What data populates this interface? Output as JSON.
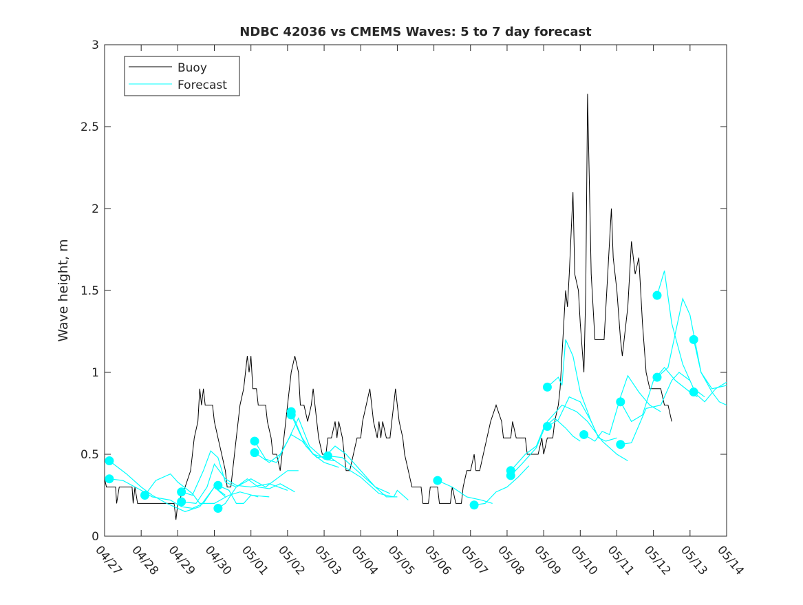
{
  "chart_data": {
    "type": "line",
    "title": "NDBC 42036 vs CMEMS Waves: 5 to 7 day forecast",
    "xlabel": "",
    "ylabel": "Wave height, m",
    "xlim": [
      0,
      17
    ],
    "ylim": [
      0,
      3
    ],
    "x_unit": "days since 04/27",
    "xticks": [
      "04/27",
      "04/28",
      "04/29",
      "04/30",
      "05/01",
      "05/02",
      "05/03",
      "05/04",
      "05/05",
      "05/06",
      "05/07",
      "05/08",
      "05/09",
      "05/10",
      "05/11",
      "05/12",
      "05/13",
      "05/14"
    ],
    "yticks": [
      0,
      0.5,
      1,
      1.5,
      2,
      2.5,
      3
    ],
    "legend": {
      "placement": "top-left",
      "entries": [
        "Buoy",
        "Forecast"
      ]
    },
    "colors": {
      "buoy": "#000000",
      "forecast": "#00ffff"
    },
    "buoy": [
      [
        0,
        0.35
      ],
      [
        0.05,
        0.3
      ],
      [
        0.3,
        0.3
      ],
      [
        0.33,
        0.2
      ],
      [
        0.4,
        0.3
      ],
      [
        0.75,
        0.3
      ],
      [
        0.78,
        0.2
      ],
      [
        0.83,
        0.3
      ],
      [
        0.9,
        0.2
      ],
      [
        1.5,
        0.2
      ],
      [
        1.9,
        0.2
      ],
      [
        1.95,
        0.1
      ],
      [
        2.0,
        0.2
      ],
      [
        2.2,
        0.3
      ],
      [
        2.35,
        0.4
      ],
      [
        2.45,
        0.6
      ],
      [
        2.55,
        0.7
      ],
      [
        2.6,
        0.9
      ],
      [
        2.65,
        0.8
      ],
      [
        2.7,
        0.9
      ],
      [
        2.75,
        0.8
      ],
      [
        2.95,
        0.8
      ],
      [
        3.0,
        0.7
      ],
      [
        3.1,
        0.6
      ],
      [
        3.2,
        0.5
      ],
      [
        3.3,
        0.4
      ],
      [
        3.35,
        0.3
      ],
      [
        3.45,
        0.3
      ],
      [
        3.5,
        0.4
      ],
      [
        3.6,
        0.6
      ],
      [
        3.7,
        0.8
      ],
      [
        3.8,
        0.9
      ],
      [
        3.9,
        1.1
      ],
      [
        3.95,
        1.0
      ],
      [
        4.0,
        1.1
      ],
      [
        4.05,
        0.9
      ],
      [
        4.15,
        0.9
      ],
      [
        4.2,
        0.8
      ],
      [
        4.4,
        0.8
      ],
      [
        4.45,
        0.7
      ],
      [
        4.55,
        0.6
      ],
      [
        4.6,
        0.5
      ],
      [
        4.7,
        0.5
      ],
      [
        4.8,
        0.4
      ],
      [
        4.9,
        0.6
      ],
      [
        5.0,
        0.8
      ],
      [
        5.1,
        1.0
      ],
      [
        5.2,
        1.1
      ],
      [
        5.3,
        1.0
      ],
      [
        5.35,
        0.8
      ],
      [
        5.45,
        0.8
      ],
      [
        5.55,
        0.7
      ],
      [
        5.65,
        0.8
      ],
      [
        5.7,
        0.9
      ],
      [
        5.8,
        0.7
      ],
      [
        5.85,
        0.6
      ],
      [
        5.95,
        0.5
      ],
      [
        6.05,
        0.5
      ],
      [
        6.1,
        0.6
      ],
      [
        6.2,
        0.6
      ],
      [
        6.3,
        0.7
      ],
      [
        6.35,
        0.6
      ],
      [
        6.4,
        0.7
      ],
      [
        6.5,
        0.6
      ],
      [
        6.55,
        0.5
      ],
      [
        6.6,
        0.4
      ],
      [
        6.7,
        0.4
      ],
      [
        6.8,
        0.5
      ],
      [
        6.9,
        0.6
      ],
      [
        7.0,
        0.6
      ],
      [
        7.05,
        0.7
      ],
      [
        7.15,
        0.8
      ],
      [
        7.25,
        0.9
      ],
      [
        7.3,
        0.8
      ],
      [
        7.35,
        0.7
      ],
      [
        7.45,
        0.6
      ],
      [
        7.5,
        0.7
      ],
      [
        7.55,
        0.6
      ],
      [
        7.6,
        0.7
      ],
      [
        7.7,
        0.6
      ],
      [
        7.8,
        0.6
      ],
      [
        7.85,
        0.7
      ],
      [
        7.9,
        0.8
      ],
      [
        7.95,
        0.9
      ],
      [
        8.0,
        0.8
      ],
      [
        8.05,
        0.7
      ],
      [
        8.15,
        0.6
      ],
      [
        8.2,
        0.5
      ],
      [
        8.3,
        0.4
      ],
      [
        8.4,
        0.3
      ],
      [
        8.5,
        0.3
      ],
      [
        8.65,
        0.3
      ],
      [
        8.7,
        0.2
      ],
      [
        8.85,
        0.2
      ],
      [
        8.9,
        0.3
      ],
      [
        9.1,
        0.3
      ],
      [
        9.15,
        0.2
      ],
      [
        9.45,
        0.2
      ],
      [
        9.5,
        0.3
      ],
      [
        9.6,
        0.2
      ],
      [
        9.75,
        0.2
      ],
      [
        9.8,
        0.3
      ],
      [
        9.9,
        0.4
      ],
      [
        10.0,
        0.4
      ],
      [
        10.1,
        0.5
      ],
      [
        10.15,
        0.4
      ],
      [
        10.25,
        0.4
      ],
      [
        10.35,
        0.5
      ],
      [
        10.45,
        0.6
      ],
      [
        10.55,
        0.7
      ],
      [
        10.7,
        0.8
      ],
      [
        10.85,
        0.7
      ],
      [
        10.9,
        0.6
      ],
      [
        11.1,
        0.6
      ],
      [
        11.15,
        0.7
      ],
      [
        11.25,
        0.6
      ],
      [
        11.5,
        0.6
      ],
      [
        11.55,
        0.5
      ],
      [
        11.85,
        0.5
      ],
      [
        11.95,
        0.6
      ],
      [
        12.0,
        0.5
      ],
      [
        12.1,
        0.6
      ],
      [
        12.25,
        0.6
      ],
      [
        12.3,
        0.7
      ],
      [
        12.4,
        0.8
      ],
      [
        12.45,
        0.9
      ],
      [
        12.6,
        1.5
      ],
      [
        12.65,
        1.4
      ],
      [
        12.7,
        1.6
      ],
      [
        12.8,
        2.1
      ],
      [
        12.85,
        1.6
      ],
      [
        12.95,
        1.5
      ],
      [
        13.0,
        1.3
      ],
      [
        13.1,
        1.0
      ],
      [
        13.15,
        1.5
      ],
      [
        13.2,
        2.7
      ],
      [
        13.3,
        1.6
      ],
      [
        13.4,
        1.2
      ],
      [
        13.65,
        1.2
      ],
      [
        13.75,
        1.6
      ],
      [
        13.85,
        2.0
      ],
      [
        13.9,
        1.7
      ],
      [
        14.0,
        1.5
      ],
      [
        14.1,
        1.2
      ],
      [
        14.15,
        1.1
      ],
      [
        14.3,
        1.4
      ],
      [
        14.4,
        1.8
      ],
      [
        14.5,
        1.6
      ],
      [
        14.6,
        1.7
      ],
      [
        14.7,
        1.3
      ],
      [
        14.8,
        1.0
      ],
      [
        14.9,
        0.9
      ],
      [
        15.2,
        0.9
      ],
      [
        15.3,
        0.8
      ],
      [
        15.4,
        0.8
      ],
      [
        15.5,
        0.7
      ]
    ],
    "forecast": [
      [
        [
          0.13,
          0.46
        ],
        [
          0.6,
          0.38
        ],
        [
          1.0,
          0.3
        ],
        [
          1.3,
          0.25
        ],
        [
          1.7,
          0.2
        ],
        [
          2.2,
          0.15
        ],
        [
          2.6,
          0.18
        ],
        [
          3.0,
          0.3
        ],
        [
          3.3,
          0.24
        ]
      ],
      [
        [
          0.13,
          0.35
        ],
        [
          0.5,
          0.34
        ],
        [
          1.0,
          0.28
        ],
        [
          1.3,
          0.24
        ],
        [
          1.8,
          0.22
        ],
        [
          2.1,
          0.18
        ],
        [
          2.4,
          0.17
        ],
        [
          2.7,
          0.2
        ],
        [
          3.0,
          0.3
        ],
        [
          3.3,
          0.25
        ]
      ],
      [
        [
          1.1,
          0.25
        ],
        [
          1.4,
          0.34
        ],
        [
          1.8,
          0.38
        ],
        [
          2.0,
          0.33
        ],
        [
          2.4,
          0.26
        ],
        [
          2.6,
          0.2
        ],
        [
          3.0,
          0.2
        ],
        [
          3.4,
          0.25
        ],
        [
          3.7,
          0.27
        ],
        [
          4.2,
          0.24
        ]
      ],
      [
        [
          2.1,
          0.27
        ],
        [
          2.4,
          0.25
        ],
        [
          2.7,
          0.4
        ],
        [
          2.9,
          0.52
        ],
        [
          3.1,
          0.48
        ],
        [
          3.3,
          0.33
        ],
        [
          3.6,
          0.3
        ],
        [
          4.0,
          0.35
        ],
        [
          4.4,
          0.3
        ],
        [
          5.0,
          0.4
        ],
        [
          5.3,
          0.4
        ]
      ],
      [
        [
          2.1,
          0.21
        ],
        [
          2.5,
          0.2
        ],
        [
          2.8,
          0.3
        ],
        [
          3.0,
          0.44
        ],
        [
          3.3,
          0.35
        ],
        [
          3.6,
          0.31
        ],
        [
          4.0,
          0.3
        ],
        [
          4.5,
          0.32
        ],
        [
          5.0,
          0.28
        ]
      ],
      [
        [
          3.1,
          0.31
        ],
        [
          3.4,
          0.28
        ],
        [
          3.6,
          0.2
        ],
        [
          3.8,
          0.2
        ],
        [
          4.0,
          0.25
        ],
        [
          4.5,
          0.24
        ]
      ],
      [
        [
          3.1,
          0.17
        ],
        [
          3.3,
          0.2
        ],
        [
          3.6,
          0.3
        ],
        [
          3.9,
          0.35
        ],
        [
          4.2,
          0.3
        ],
        [
          4.5,
          0.29
        ],
        [
          4.8,
          0.32
        ],
        [
          5.2,
          0.27
        ]
      ],
      [
        [
          4.1,
          0.58
        ],
        [
          4.4,
          0.47
        ],
        [
          4.7,
          0.45
        ],
        [
          5.0,
          0.58
        ],
        [
          5.3,
          0.72
        ],
        [
          5.6,
          0.55
        ],
        [
          6.0,
          0.47
        ],
        [
          6.3,
          0.46
        ]
      ],
      [
        [
          4.1,
          0.51
        ],
        [
          4.5,
          0.45
        ],
        [
          4.8,
          0.5
        ],
        [
          5.1,
          0.62
        ],
        [
          5.4,
          0.58
        ],
        [
          5.7,
          0.5
        ],
        [
          6.0,
          0.45
        ],
        [
          6.4,
          0.42
        ]
      ],
      [
        [
          5.1,
          0.76
        ],
        [
          5.4,
          0.6
        ],
        [
          5.7,
          0.5
        ],
        [
          6.0,
          0.48
        ],
        [
          6.3,
          0.55
        ],
        [
          6.6,
          0.5
        ],
        [
          7.0,
          0.4
        ],
        [
          7.4,
          0.3
        ],
        [
          7.8,
          0.26
        ]
      ],
      [
        [
          5.1,
          0.74
        ],
        [
          5.5,
          0.55
        ],
        [
          5.8,
          0.48
        ],
        [
          6.1,
          0.49
        ],
        [
          6.5,
          0.43
        ],
        [
          7.0,
          0.36
        ],
        [
          7.5,
          0.26
        ],
        [
          7.9,
          0.24
        ],
        [
          8.0,
          0.28
        ],
        [
          8.3,
          0.22
        ]
      ],
      [
        [
          6.1,
          0.49
        ],
        [
          6.5,
          0.48
        ],
        [
          6.9,
          0.4
        ],
        [
          7.3,
          0.32
        ],
        [
          7.7,
          0.24
        ],
        [
          8.0,
          0.24
        ]
      ],
      [
        [
          9.1,
          0.34
        ],
        [
          9.5,
          0.3
        ],
        [
          9.9,
          0.24
        ],
        [
          10.3,
          0.22
        ],
        [
          10.6,
          0.2
        ]
      ],
      [
        [
          10.1,
          0.19
        ],
        [
          10.4,
          0.2
        ],
        [
          10.7,
          0.27
        ],
        [
          11.0,
          0.3
        ],
        [
          11.3,
          0.36
        ],
        [
          11.6,
          0.43
        ]
      ],
      [
        [
          11.1,
          0.4
        ],
        [
          11.5,
          0.5
        ],
        [
          11.8,
          0.55
        ],
        [
          12.0,
          0.66
        ],
        [
          12.3,
          0.72
        ],
        [
          12.6,
          0.66
        ],
        [
          12.8,
          0.61
        ],
        [
          13.0,
          0.58
        ]
      ],
      [
        [
          11.1,
          0.37
        ],
        [
          11.4,
          0.44
        ],
        [
          11.8,
          0.54
        ],
        [
          12.1,
          0.7
        ],
        [
          12.5,
          0.8
        ],
        [
          12.9,
          0.76
        ],
        [
          13.2,
          0.7
        ],
        [
          13.6,
          0.58
        ],
        [
          14.0,
          0.5
        ],
        [
          14.3,
          0.46
        ]
      ],
      [
        [
          12.1,
          0.91
        ],
        [
          12.4,
          0.97
        ],
        [
          12.5,
          0.92
        ],
        [
          12.6,
          1.2
        ],
        [
          12.8,
          1.1
        ],
        [
          13.0,
          0.88
        ],
        [
          13.3,
          0.7
        ],
        [
          13.5,
          0.6
        ]
      ],
      [
        [
          12.1,
          0.67
        ],
        [
          12.4,
          0.71
        ],
        [
          12.7,
          0.85
        ],
        [
          13.0,
          0.82
        ],
        [
          13.3,
          0.7
        ],
        [
          13.5,
          0.6
        ],
        [
          13.7,
          0.58
        ],
        [
          14.0,
          0.6
        ]
      ],
      [
        [
          13.1,
          0.62
        ],
        [
          13.4,
          0.58
        ],
        [
          13.6,
          0.64
        ],
        [
          13.8,
          0.62
        ],
        [
          14.1,
          0.85
        ],
        [
          14.3,
          0.98
        ],
        [
          14.6,
          0.88
        ],
        [
          14.9,
          0.8
        ],
        [
          15.2,
          0.76
        ]
      ],
      [
        [
          14.1,
          0.82
        ],
        [
          14.4,
          0.7
        ],
        [
          14.7,
          0.74
        ],
        [
          15.0,
          0.95
        ],
        [
          15.3,
          1.03
        ],
        [
          15.6,
          0.95
        ],
        [
          16.0,
          0.88
        ],
        [
          16.2,
          0.85
        ]
      ],
      [
        [
          14.1,
          0.56
        ],
        [
          14.4,
          0.57
        ],
        [
          14.8,
          0.78
        ],
        [
          15.2,
          0.8
        ],
        [
          15.5,
          0.95
        ],
        [
          15.7,
          1.0
        ],
        [
          16.0,
          0.95
        ]
      ],
      [
        [
          15.1,
          1.47
        ],
        [
          15.3,
          1.62
        ],
        [
          15.5,
          1.3
        ],
        [
          15.8,
          1.05
        ],
        [
          16.1,
          0.9
        ],
        [
          16.4,
          0.85
        ]
      ],
      [
        [
          15.1,
          0.97
        ],
        [
          15.4,
          1.03
        ],
        [
          15.8,
          1.45
        ],
        [
          16.0,
          1.35
        ],
        [
          16.3,
          1.0
        ],
        [
          16.6,
          0.9
        ],
        [
          17.0,
          0.92
        ]
      ],
      [
        [
          16.1,
          1.2
        ],
        [
          16.3,
          1.0
        ],
        [
          16.6,
          0.88
        ],
        [
          16.8,
          0.82
        ],
        [
          17.0,
          0.8
        ]
      ],
      [
        [
          16.1,
          0.88
        ],
        [
          16.4,
          0.82
        ],
        [
          16.7,
          0.9
        ],
        [
          17.0,
          0.94
        ]
      ]
    ]
  }
}
